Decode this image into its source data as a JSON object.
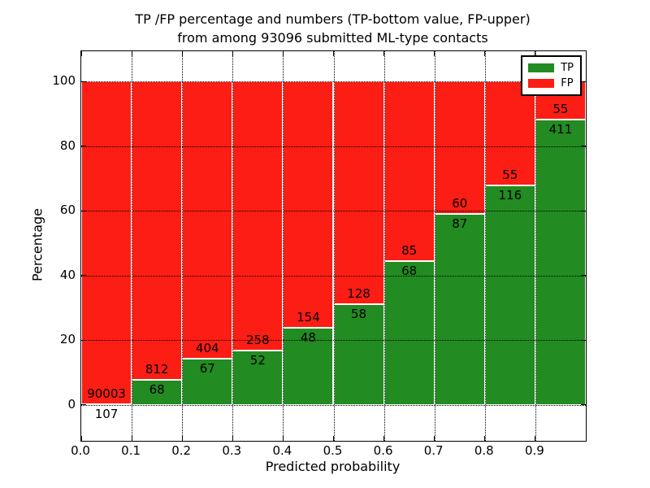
{
  "figure": {
    "title_line1": "TP /FP percentage and numbers (TP-bottom value, FP-upper)",
    "title_line2": "from among 93096 submitted ML-type contacts"
  },
  "chart_data": {
    "type": "bar",
    "stacked": true,
    "normalized_to_percent": true,
    "title": "TP /FP percentage and numbers (TP-bottom value, FP-upper)\nfrom among 93096 submitted ML-type contacts",
    "xlabel": "Predicted probability",
    "ylabel": "Percentage",
    "total_contacts": 93096,
    "bins": [
      0.0,
      0.1,
      0.2,
      0.3,
      0.4,
      0.5,
      0.6,
      0.7,
      0.8,
      0.9
    ],
    "bin_width": 0.1,
    "series": [
      {
        "name": "TP",
        "color": "#228b22",
        "values": [
          107,
          68,
          67,
          52,
          48,
          58,
          68,
          87,
          116,
          411
        ]
      },
      {
        "name": "FP",
        "color": "#fc1d14",
        "values": [
          90003,
          812,
          404,
          258,
          154,
          128,
          85,
          60,
          55,
          55
        ]
      }
    ],
    "tp_percent_of_bin": [
      0.12,
      7.73,
      14.23,
      16.77,
      23.76,
      31.18,
      44.44,
      59.18,
      67.84,
      88.2
    ],
    "annotation_rule": "TP count below green/red boundary, FP count above boundary",
    "xticks": [
      "0.0",
      "0.1",
      "0.2",
      "0.3",
      "0.4",
      "0.5",
      "0.6",
      "0.7",
      "0.8",
      "0.9"
    ],
    "yticks": [
      0,
      20,
      40,
      60,
      80,
      100
    ],
    "xlim": [
      0,
      1.0
    ],
    "ylim": [
      -11.1,
      109.4
    ],
    "grid": "dotted black, drawn over bars",
    "bar_edge_color": "#ffffff",
    "legend": {
      "position": "upper right",
      "entries": [
        "TP",
        "FP"
      ]
    }
  }
}
